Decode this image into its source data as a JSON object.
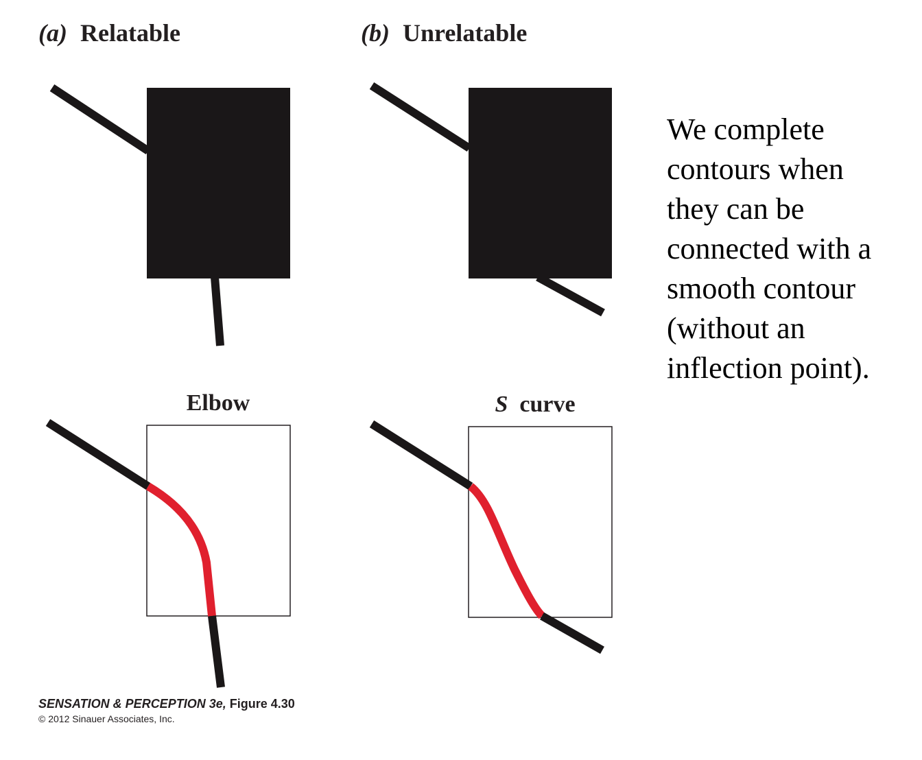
{
  "panels": {
    "a": {
      "letter": "(a)",
      "title": "Relatable"
    },
    "b": {
      "letter": "(b)",
      "title": "Unrelatable"
    }
  },
  "subpanels": {
    "elbow": {
      "title": "Elbow"
    },
    "s_curve": {
      "title_italic": "S",
      "title_rest": " curve"
    }
  },
  "caption": {
    "lines": [
      "We complete",
      "contours when",
      "they can be",
      "connected with a",
      "smooth contour",
      "(without an",
      "inflection point)."
    ]
  },
  "credit": {
    "book": "SENSATION & PERCEPTION 3e,",
    "figure": " Figure 4.30",
    "copyright": "© 2012 Sinauer Associates, Inc."
  },
  "colors": {
    "ink": "#1a1718",
    "completion": "#e0202e",
    "box_outline": "#231f20"
  }
}
